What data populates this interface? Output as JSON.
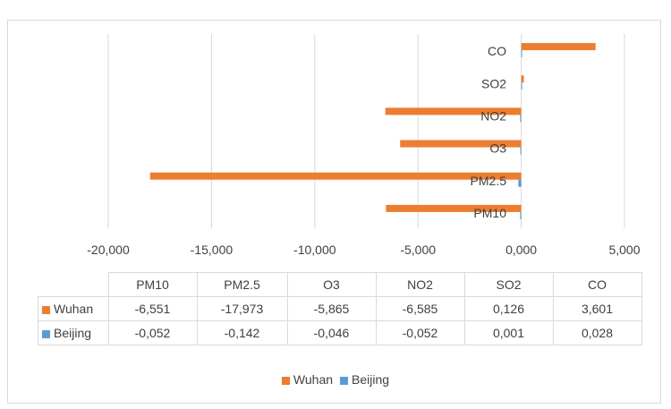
{
  "chart_data": {
    "type": "bar",
    "orientation": "horizontal",
    "categories": [
      "PM10",
      "PM2.5",
      "O3",
      "NO2",
      "SO2",
      "CO"
    ],
    "series": [
      {
        "name": "Wuhan",
        "color": "#ED7D31",
        "values": [
          -6.551,
          -17.973,
          -5.865,
          -6.585,
          0.126,
          3.601
        ],
        "labels": [
          "-6,551",
          "-17,973",
          "-5,865",
          "-6,585",
          "0,126",
          "3,601"
        ]
      },
      {
        "name": "Beijing",
        "color": "#5B9BD5",
        "values": [
          -0.052,
          -0.142,
          -0.046,
          -0.052,
          0.001,
          0.028
        ],
        "labels": [
          "-0,052",
          "-0,142",
          "-0,046",
          "-0,052",
          "0,001",
          "0,028"
        ]
      }
    ],
    "xlim": [
      -20,
      5
    ],
    "xticks": [
      -20,
      -15,
      -10,
      -5,
      0,
      5
    ],
    "xtick_labels": [
      "-20,000",
      "-15,000",
      "-10,000",
      "-5,000",
      "0,000",
      "5,000"
    ],
    "grid": true,
    "legend": "bottom",
    "data_table": true
  }
}
